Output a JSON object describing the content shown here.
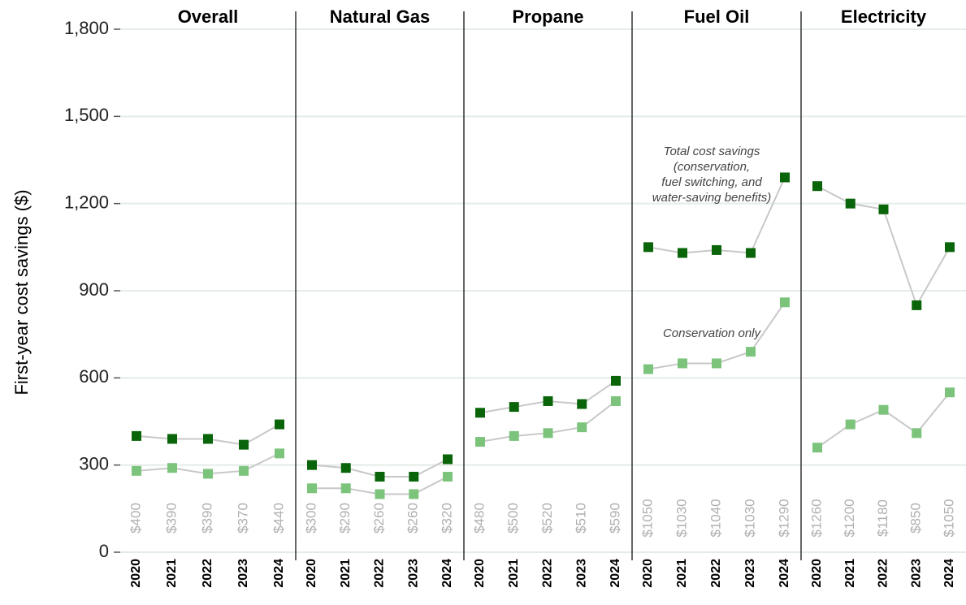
{
  "chart_data": {
    "type": "line",
    "y_label": "First-year cost savings ($)",
    "ylim": [
      0,
      1800
    ],
    "yticks": [
      0,
      300,
      600,
      900,
      {
        "value": 1200,
        "label": "1,200"
      },
      {
        "value": 1500,
        "label": "1,500"
      },
      {
        "value": 1800,
        "label": "1,800"
      }
    ],
    "grid": true,
    "categories": [
      "2020",
      "2021",
      "2022",
      "2023",
      "2024"
    ],
    "panels": [
      {
        "title": "Overall",
        "series": [
          {
            "color": "#0a640a",
            "values": [
              400,
              390,
              390,
              370,
              440
            ],
            "value_labels": [
              "$400",
              "$390",
              "$390",
              "$370",
              "$440"
            ]
          },
          {
            "color": "#7cc47c",
            "values": [
              280,
              290,
              270,
              280,
              340
            ]
          }
        ]
      },
      {
        "title": "Natural Gas",
        "series": [
          {
            "color": "#0a640a",
            "values": [
              300,
              290,
              260,
              260,
              320
            ],
            "value_labels": [
              "$300",
              "$290",
              "$260",
              "$260",
              "$320"
            ]
          },
          {
            "color": "#7cc47c",
            "values": [
              220,
              220,
              200,
              200,
              260
            ]
          }
        ]
      },
      {
        "title": "Propane",
        "series": [
          {
            "color": "#0a640a",
            "values": [
              480,
              500,
              520,
              510,
              590
            ],
            "value_labels": [
              "$480",
              "$500",
              "$520",
              "$510",
              "$590"
            ]
          },
          {
            "color": "#7cc47c",
            "values": [
              380,
              400,
              410,
              430,
              520
            ]
          }
        ]
      },
      {
        "title": "Fuel Oil",
        "series": [
          {
            "color": "#0a640a",
            "values": [
              1050,
              1030,
              1040,
              1030,
              1290
            ],
            "value_labels": [
              "$1050",
              "$1030",
              "$1040",
              "$1030",
              "$1290"
            ]
          },
          {
            "color": "#7cc47c",
            "values": [
              630,
              650,
              650,
              690,
              860
            ]
          }
        ],
        "annotations": [
          [
            "Total cost savings",
            "(conservation,",
            "fuel switching, and",
            "water-saving benefits)"
          ],
          [
            "Conservation only"
          ]
        ]
      },
      {
        "title": "Electricity",
        "series": [
          {
            "color": "#0a640a",
            "values": [
              1260,
              1200,
              1180,
              850,
              1050
            ],
            "value_labels": [
              "$1260",
              "$1200",
              "$1180",
              "$850",
              "$1050"
            ]
          },
          {
            "color": "#7cc47c",
            "values": [
              360,
              440,
              490,
              410,
              550
            ]
          }
        ]
      }
    ]
  }
}
